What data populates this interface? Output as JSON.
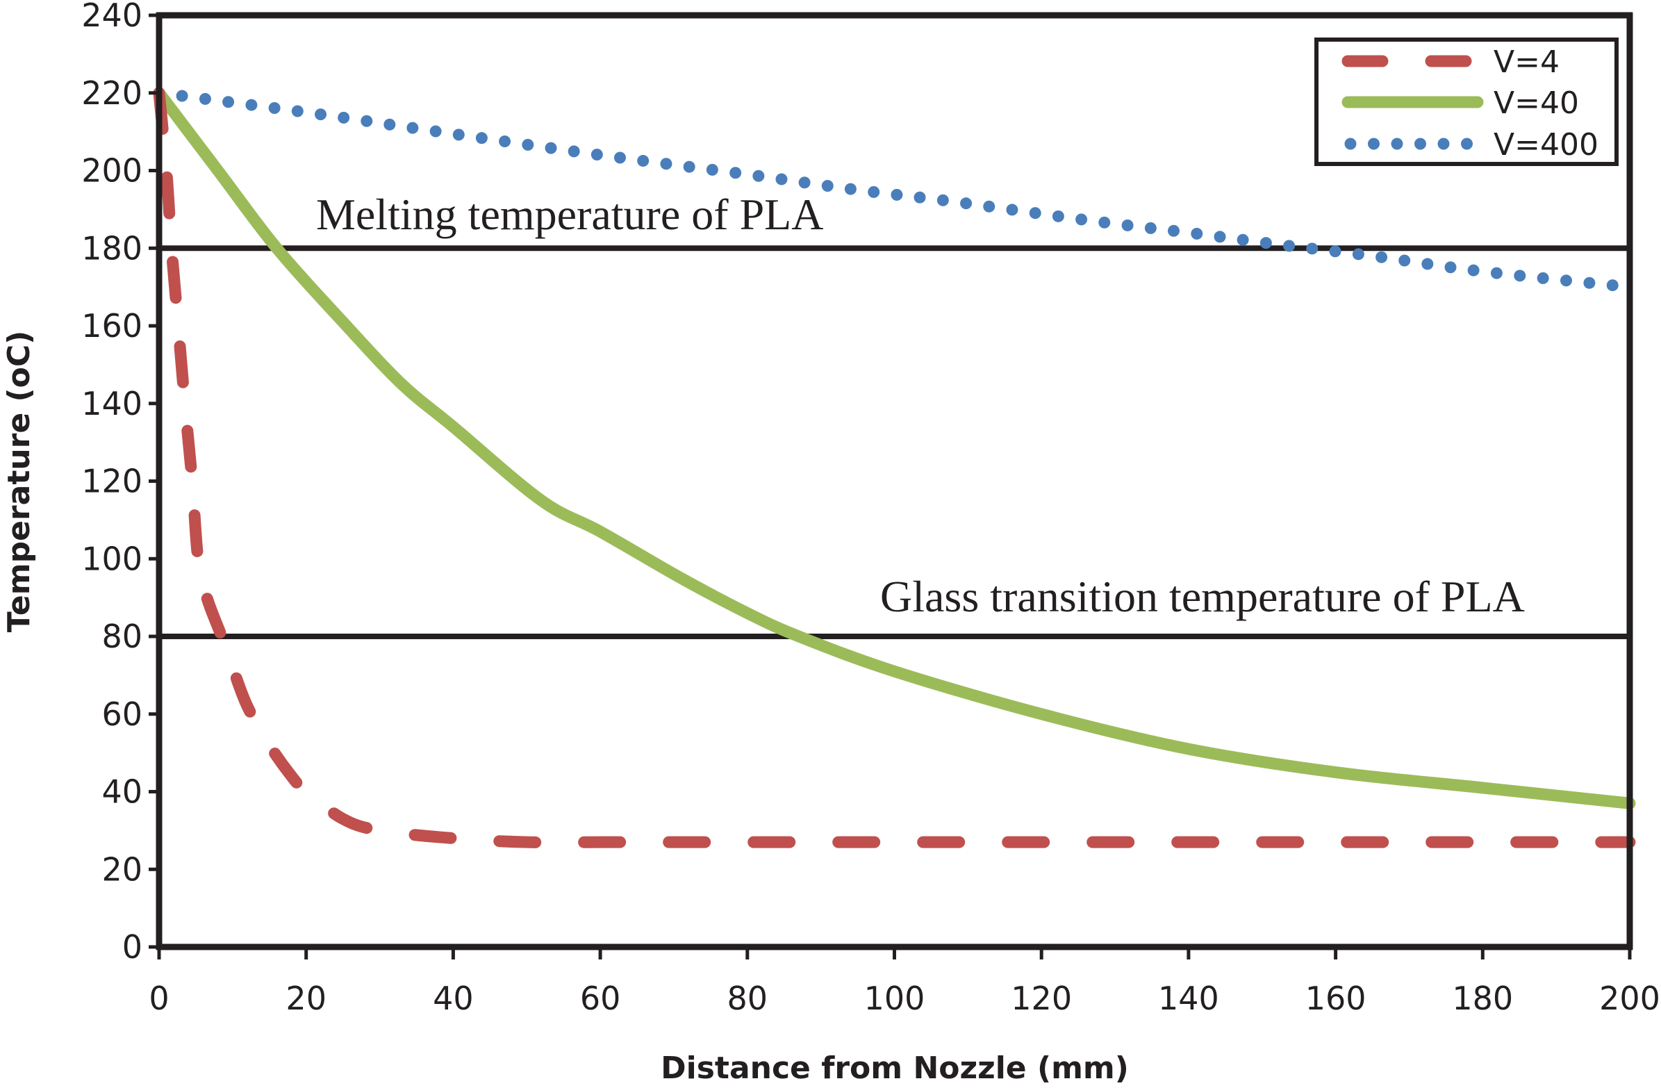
{
  "chart_data": {
    "type": "line",
    "title": "",
    "xlabel": "Distance from Nozzle (mm)",
    "ylabel": "Temperature (oC)",
    "xlim": [
      0,
      200
    ],
    "ylim": [
      0,
      240
    ],
    "x_ticks": [
      0,
      20,
      40,
      60,
      80,
      100,
      120,
      140,
      160,
      180,
      200
    ],
    "y_ticks": [
      0,
      20,
      40,
      60,
      80,
      100,
      120,
      140,
      160,
      180,
      200,
      220,
      240
    ],
    "grid": false,
    "legend_position": "top-right",
    "reference_lines": [
      {
        "y": 180,
        "label": "Melting temperature of PLA",
        "color": "#231f20"
      },
      {
        "y": 80,
        "label": "Glass transition temperature of PLA",
        "color": "#231f20"
      }
    ],
    "series": [
      {
        "name": "V=4",
        "style": "dashed",
        "color": "#c0504d",
        "x": [
          0,
          1,
          1.7,
          2.6,
          3.5,
          4.5,
          5.3,
          6.5,
          8.5,
          10,
          12,
          15,
          18,
          20,
          25,
          30,
          40,
          50,
          60,
          80,
          100,
          120,
          140,
          160,
          180,
          200
        ],
        "y": [
          220,
          200,
          180,
          160,
          140,
          120,
          100,
          90,
          80,
          72,
          62,
          52,
          44,
          40,
          33,
          30,
          28,
          27,
          27,
          27,
          27,
          27,
          27,
          27,
          27,
          27
        ]
      },
      {
        "name": "V=40",
        "style": "solid",
        "color": "#9bbb59",
        "x": [
          0,
          8,
          16,
          25,
          33,
          40,
          52,
          60,
          71,
          80,
          87,
          100,
          120,
          140,
          160,
          180,
          200
        ],
        "y": [
          220,
          200,
          180,
          161,
          145,
          134,
          115,
          107,
          95,
          86,
          80,
          71,
          60,
          51,
          45,
          41,
          37
        ]
      },
      {
        "name": "V=400",
        "style": "dotted",
        "color": "#4a7ebb",
        "x": [
          0,
          20,
          38,
          60,
          80,
          95,
          108,
          127,
          140,
          152,
          165,
          180,
          200
        ],
        "y": [
          220,
          215,
          210,
          204,
          199,
          195,
          192,
          187,
          184,
          181,
          178,
          174,
          170
        ]
      }
    ]
  }
}
